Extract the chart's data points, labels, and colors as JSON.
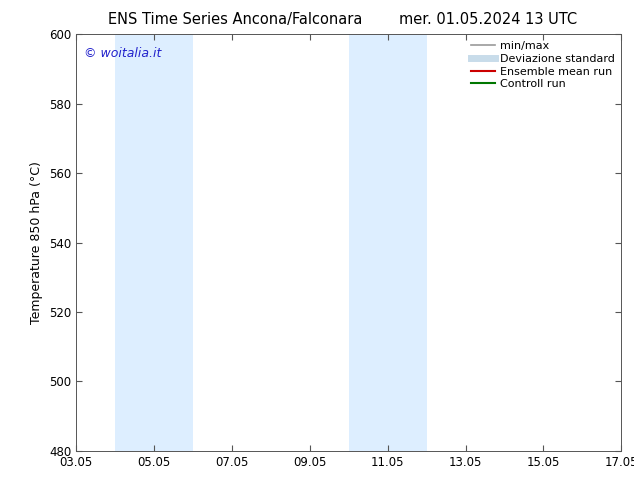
{
  "title_left": "ENS Time Series Ancona/Falconara",
  "title_right": "mer. 01.05.2024 13 UTC",
  "ylabel": "Temperature 850 hPa (°C)",
  "ylim": [
    480,
    600
  ],
  "yticks": [
    480,
    500,
    520,
    540,
    560,
    580,
    600
  ],
  "xticks": [
    "03.05",
    "05.05",
    "07.05",
    "09.05",
    "11.05",
    "13.05",
    "15.05",
    "17.05"
  ],
  "xtick_positions": [
    0,
    2,
    4,
    6,
    8,
    10,
    12,
    14
  ],
  "xlim": [
    0,
    14
  ],
  "bg_color": "#ffffff",
  "plot_bg_color": "#ffffff",
  "shaded_bands": [
    {
      "x_start": 1,
      "x_end": 3,
      "color": "#ddeeff"
    },
    {
      "x_start": 7,
      "x_end": 9,
      "color": "#ddeeff"
    }
  ],
  "watermark_text": "© woitalia.it",
  "watermark_color": "#2222cc",
  "legend_items": [
    {
      "label": "min/max",
      "color": "#999999",
      "lw": 1.2,
      "style": "solid"
    },
    {
      "label": "Deviazione standard",
      "color": "#c8dcea",
      "lw": 5,
      "style": "solid"
    },
    {
      "label": "Ensemble mean run",
      "color": "#cc0000",
      "lw": 1.5,
      "style": "solid"
    },
    {
      "label": "Controll run",
      "color": "#007700",
      "lw": 1.5,
      "style": "solid"
    }
  ],
  "border_color": "#555555",
  "tick_color": "#555555",
  "font_size_title": 10.5,
  "font_size_ylabel": 9,
  "font_size_tick": 8.5,
  "font_size_legend": 8,
  "font_size_watermark": 9
}
